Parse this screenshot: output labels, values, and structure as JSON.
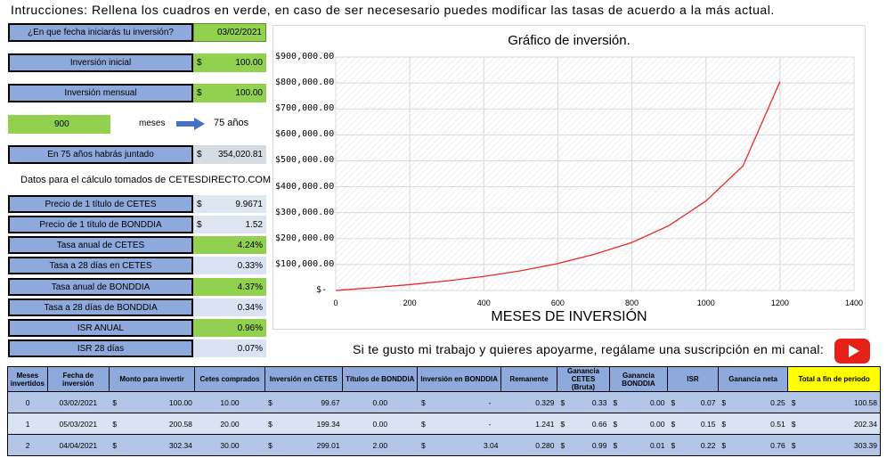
{
  "instructions": "Intrucciones: Rellena los cuadros en verde, en caso de ser necesesario puedes modificar las tasas de acuerdo a la más actual.",
  "inputs": {
    "fecha_label": "¿En que fecha iniciarás tu inversión?",
    "fecha_value": "03/02/2021",
    "inv_inicial_label": "Inversión inicial",
    "inv_inicial_cur": "$",
    "inv_inicial_value": "100.00",
    "inv_mensual_label": "Inversión mensual",
    "inv_mensual_cur": "$",
    "inv_mensual_value": "100.00",
    "meses_value": "900",
    "meses_label": "meses",
    "anos_value": "75 años",
    "juntado_label": "En 75 años habrás juntado",
    "juntado_cur": "$",
    "juntado_value": "354,020.81"
  },
  "datos_title": "Datos para el cálculo tomados de CETESDIRECTO.COM",
  "rates": [
    {
      "label": "Precio de 1 título de CETES",
      "cur": "$",
      "value": "9.9671",
      "style": "lgray"
    },
    {
      "label": "Precio de 1 título de BONDDIA",
      "cur": "$",
      "value": "1.52",
      "style": "lgray"
    },
    {
      "label": "Tasa anual de CETES",
      "cur": "",
      "value": "4.24%",
      "style": "green"
    },
    {
      "label": "Tasa a 28 días en CETES",
      "cur": "",
      "value": "0.33%",
      "style": "blue"
    },
    {
      "label": "Tasa anual de BONDDIA",
      "cur": "",
      "value": "4.37%",
      "style": "green"
    },
    {
      "label": "Tasa a 28 días de BONDDIA",
      "cur": "",
      "value": "0.34%",
      "style": "blue"
    },
    {
      "label": "ISR ANUAL",
      "cur": "",
      "value": "0.96%",
      "style": "green"
    },
    {
      "label": "ISR 28 días",
      "cur": "",
      "value": "0.07%",
      "style": "blue"
    }
  ],
  "chart_data": {
    "type": "line",
    "title": "Gráfico de inversión.",
    "xlabel": "MESES DE INVERSIÓN",
    "ylabel": "",
    "xlim": [
      0,
      1400
    ],
    "ylim": [
      0,
      900000
    ],
    "x_ticks": [
      "0",
      "200",
      "400",
      "600",
      "800",
      "1000",
      "1200",
      "1400"
    ],
    "y_ticks": [
      "$-",
      "$100,000.00",
      "$200,000.00",
      "$300,000.00",
      "$400,000.00",
      "$500,000.00",
      "$600,000.00",
      "$700,000.00",
      "$800,000.00",
      "$900,000.00"
    ],
    "grid": true,
    "line_color": "#e8292b",
    "series": [
      {
        "x": [
          0,
          100,
          200,
          300,
          400,
          500,
          600,
          700,
          800,
          900,
          1000,
          1100,
          1200
        ],
        "y": [
          100,
          10600,
          22500,
          37000,
          54000,
          76000,
          104000,
          140000,
          185000,
          250000,
          345000,
          480000,
          805000
        ]
      }
    ]
  },
  "support_text": "Si te gusto mi trabajo y quieres apoyarme, regálame una suscripción en mi canal:",
  "table": {
    "headers": [
      "Meses invertidos",
      "Fecha de inversión",
      "Monto para invertir",
      "Cetes comprados",
      "Inversión en CETES",
      "Títulos de BONDDIA",
      "Inversión en BONDDIA",
      "Remanente",
      "Ganancia CETES (Bruta)",
      "Ganancia BONDDIA",
      "ISR",
      "Ganancia neta",
      "Total a fin de periodo"
    ],
    "rows": [
      [
        "0",
        "03/02/2021",
        "100.00",
        "10.00",
        "99.67",
        "0.00",
        "-",
        "0.329",
        "0.33",
        "0.00",
        "0.07",
        "0.25",
        "100.58"
      ],
      [
        "1",
        "05/03/2021",
        "200.58",
        "20.00",
        "199.34",
        "0.00",
        "-",
        "1.241",
        "0.66",
        "0.00",
        "0.15",
        "0.51",
        "202.34"
      ],
      [
        "2",
        "04/04/2021",
        "302.34",
        "30.00",
        "299.01",
        "2.00",
        "3.04",
        "0.280",
        "0.99",
        "0.01",
        "0.22",
        "0.76",
        "303.39"
      ]
    ]
  }
}
